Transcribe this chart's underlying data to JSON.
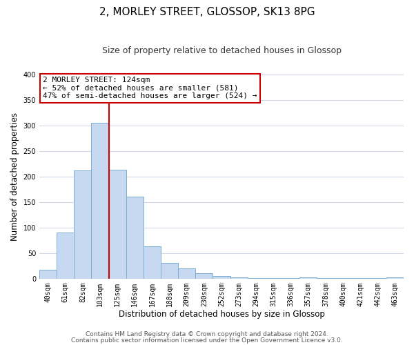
{
  "title": "2, MORLEY STREET, GLOSSOP, SK13 8PG",
  "subtitle": "Size of property relative to detached houses in Glossop",
  "xlabel": "Distribution of detached houses by size in Glossop",
  "ylabel": "Number of detached properties",
  "bar_labels": [
    "40sqm",
    "61sqm",
    "82sqm",
    "103sqm",
    "125sqm",
    "146sqm",
    "167sqm",
    "188sqm",
    "209sqm",
    "230sqm",
    "252sqm",
    "273sqm",
    "294sqm",
    "315sqm",
    "336sqm",
    "357sqm",
    "378sqm",
    "400sqm",
    "421sqm",
    "442sqm",
    "463sqm"
  ],
  "bar_values": [
    17,
    90,
    212,
    305,
    213,
    161,
    64,
    31,
    20,
    10,
    5,
    2,
    1,
    1,
    1,
    2,
    1,
    1,
    1,
    1,
    2
  ],
  "bar_color": "#c6d9f0",
  "bar_edge_color": "#7bafd4",
  "vline_x": 3.5,
  "vline_color": "#cc0000",
  "ylim": [
    0,
    400
  ],
  "yticks": [
    0,
    50,
    100,
    150,
    200,
    250,
    300,
    350,
    400
  ],
  "annotation_title": "2 MORLEY STREET: 124sqm",
  "annotation_line1": "← 52% of detached houses are smaller (581)",
  "annotation_line2": "47% of semi-detached houses are larger (524) →",
  "footer1": "Contains HM Land Registry data © Crown copyright and database right 2024.",
  "footer2": "Contains public sector information licensed under the Open Government Licence v3.0.",
  "bg_color": "#ffffff",
  "grid_color": "#d0d8e8",
  "title_fontsize": 11,
  "subtitle_fontsize": 9,
  "axis_label_fontsize": 8.5,
  "tick_fontsize": 7,
  "footer_fontsize": 6.5,
  "ann_fontsize": 8
}
